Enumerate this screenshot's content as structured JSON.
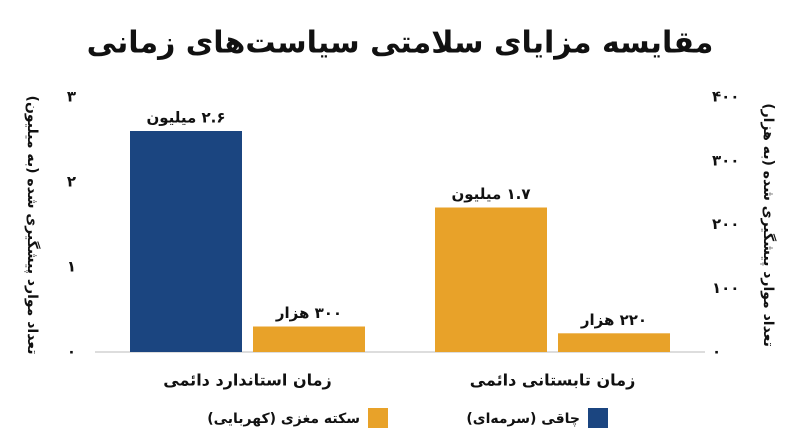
{
  "chart_data": {
    "type": "bar",
    "title": "مقایسه مزایای سلامتی سیاست‌های زمانی",
    "ylabel": "تعداد موارد پیشگیری شده (به میلیون)",
    "y2label": "تعداد موارد پیشگیری شده (به هزار)",
    "categories": [
      "زمان استاندارد دائمی",
      "زمان تابستانی دائمی"
    ],
    "series": [
      {
        "name": "چاقی (سرمه‌ای)",
        "color": "#1b4580",
        "colors": [
          "#1b4580",
          "#e8a229"
        ],
        "values": [
          2.6,
          1.7
        ],
        "value_labels": [
          "۲.۶ میلیون",
          "۱.۷ میلیون"
        ]
      },
      {
        "name": "سکته مغزی (کهربایی)",
        "color": "#e8a229",
        "values": [
          0.3,
          0.22
        ],
        "value_labels": [
          "۳۰۰ هزار",
          "۲۲۰ هزار"
        ]
      }
    ],
    "ylim": [
      0,
      3
    ],
    "yticks": [
      {
        "value": 0,
        "label": "۰"
      },
      {
        "value": 1,
        "label": "۱"
      },
      {
        "value": 2,
        "label": "۲"
      },
      {
        "value": 3,
        "label": "۳"
      }
    ],
    "y2lim": [
      0,
      400
    ],
    "y2ticks": [
      {
        "value": 0,
        "label": "۰"
      },
      {
        "value": 100,
        "label": "۱۰۰"
      },
      {
        "value": 200,
        "label": "۲۰۰"
      },
      {
        "value": 300,
        "label": "۳۰۰"
      },
      {
        "value": 400,
        "label": "۴۰۰"
      }
    ],
    "grid": false
  }
}
